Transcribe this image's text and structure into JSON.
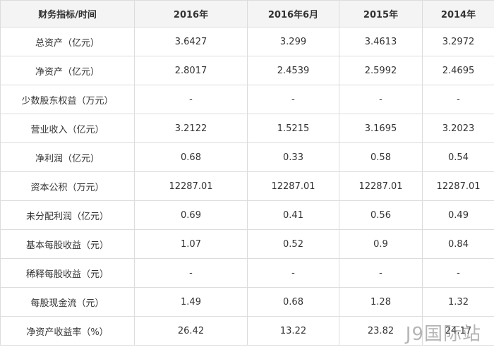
{
  "table": {
    "header": [
      "财务指标/时间",
      "2016年",
      "2016年6月",
      "2015年",
      "2014年"
    ],
    "rows": [
      [
        "总资产（亿元）",
        "3.6427",
        "3.299",
        "3.4613",
        "3.2972"
      ],
      [
        "净资产（亿元）",
        "2.8017",
        "2.4539",
        "2.5992",
        "2.4695"
      ],
      [
        "少数股东权益（万元）",
        "-",
        "-",
        "-",
        "-"
      ],
      [
        "营业收入（亿元）",
        "3.2122",
        "1.5215",
        "3.1695",
        "3.2023"
      ],
      [
        "净利润（亿元）",
        "0.68",
        "0.33",
        "0.58",
        "0.54"
      ],
      [
        "资本公积（万元）",
        "12287.01",
        "12287.01",
        "12287.01",
        "12287.01"
      ],
      [
        "未分配利润（亿元）",
        "0.69",
        "0.41",
        "0.56",
        "0.49"
      ],
      [
        "基本每股收益（元）",
        "1.07",
        "0.52",
        "0.9",
        "0.84"
      ],
      [
        "稀释每股收益（元）",
        "-",
        "-",
        "-",
        "-"
      ],
      [
        "每股现金流（元）",
        "1.49",
        "0.68",
        "1.28",
        "1.32"
      ],
      [
        "净资产收益率（%）",
        "26.42",
        "13.22",
        "23.82",
        "24.17"
      ]
    ]
  },
  "watermark": "J9国际站"
}
